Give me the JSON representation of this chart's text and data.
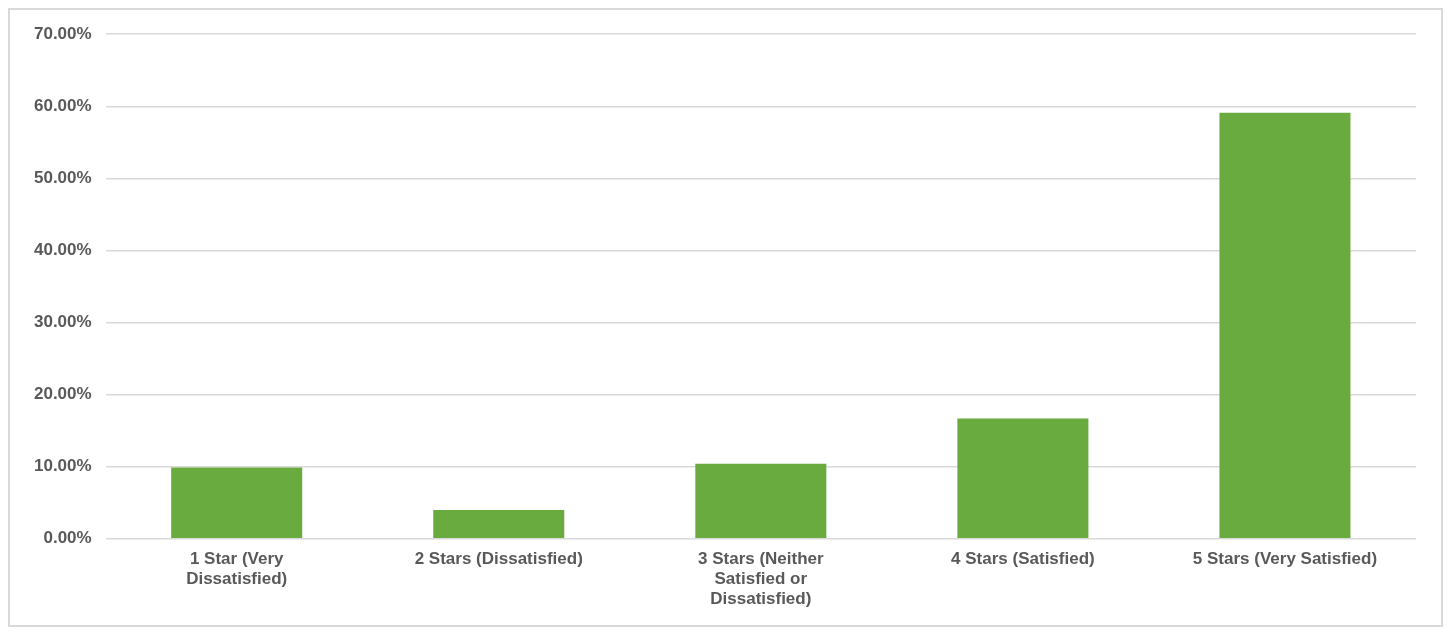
{
  "chart_data": {
    "type": "bar",
    "categories": [
      "1 Star (Very Dissatisfied)",
      "2 Stars (Dissatisfied)",
      "3 Stars (Neither Satisfied or Dissatisfied)",
      "4 Stars (Satisfied)",
      "5 Stars (Very Satisfied)"
    ],
    "values": [
      9.9,
      4.0,
      10.4,
      16.7,
      59.1
    ],
    "color": "#6aab3f",
    "ylim": [
      0,
      70
    ],
    "yticks": [
      {
        "value": 0,
        "label": "0.00%"
      },
      {
        "value": 10,
        "label": "10.00%"
      },
      {
        "value": 20,
        "label": "20.00%"
      },
      {
        "value": 30,
        "label": "30.00%"
      },
      {
        "value": 40,
        "label": "40.00%"
      },
      {
        "value": 50,
        "label": "50.00%"
      },
      {
        "value": 60,
        "label": "60.00%"
      },
      {
        "value": 70,
        "label": "70.00%"
      }
    ],
    "grid": "y",
    "legend": false
  }
}
